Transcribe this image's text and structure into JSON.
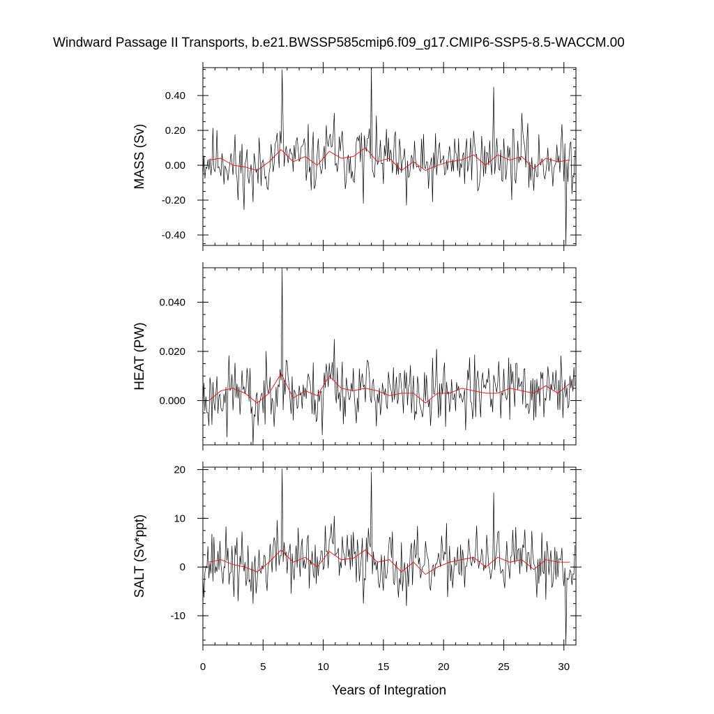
{
  "title": "Windward Passage II Transports, b.e21.BWSSP585cmip6.f09_g17.CMIP6-SSP5-8.5-WACCM.00",
  "chart_data": [
    {
      "type": "line",
      "ylabel": "MASS (Sv)",
      "xlim": [
        0,
        31
      ],
      "ylim": [
        -0.46,
        0.56
      ],
      "yticks": [
        -0.4,
        -0.2,
        0.0,
        0.2,
        0.4
      ],
      "ytick_labels": [
        "-0.40",
        "-0.20",
        "0.00",
        "0.20",
        "0.40"
      ],
      "raw_color": "#000000",
      "annual_color": "#ff0000",
      "seed": 11,
      "raw_amplitude": 0.09,
      "spikes": [
        [
          6.6,
          0.55
        ],
        [
          14.0,
          0.56
        ],
        [
          24.2,
          0.45
        ],
        [
          10.9,
          0.3
        ],
        [
          26.5,
          0.3
        ],
        [
          30.2,
          -0.46
        ],
        [
          13.3,
          -0.22
        ],
        [
          16.9,
          -0.23
        ],
        [
          2.9,
          -0.2
        ],
        [
          4.2,
          -0.21
        ]
      ],
      "annual_x": [
        0.5,
        1.5,
        2.5,
        3.5,
        4.5,
        5.5,
        6.5,
        7.5,
        8.5,
        9.5,
        10.5,
        11.5,
        12.5,
        13.5,
        14.5,
        15.5,
        16.5,
        17.5,
        18.5,
        19.5,
        20.5,
        21.5,
        22.5,
        23.5,
        24.5,
        25.5,
        26.5,
        27.5,
        28.5,
        29.5,
        30.5
      ],
      "annual_values": [
        0.03,
        0.04,
        0.0,
        -0.01,
        -0.03,
        0.02,
        0.09,
        0.02,
        0.05,
        0.0,
        0.08,
        0.04,
        0.05,
        0.1,
        0.02,
        0.04,
        -0.03,
        0.02,
        -0.03,
        0.0,
        0.02,
        0.03,
        0.06,
        0.0,
        0.06,
        0.03,
        0.05,
        -0.02,
        0.04,
        0.02,
        0.03
      ]
    },
    {
      "type": "line",
      "ylabel": "HEAT (PW)",
      "xlim": [
        0,
        31
      ],
      "ylim": [
        -0.018,
        0.054
      ],
      "yticks": [
        0.0,
        0.02,
        0.04
      ],
      "ytick_labels": [
        "0.000",
        "0.020",
        "0.040"
      ],
      "raw_color": "#000000",
      "annual_color": "#ff0000",
      "seed": 23,
      "raw_amplitude": 0.0065,
      "spikes": [
        [
          6.6,
          0.054
        ],
        [
          10.9,
          0.025
        ],
        [
          19.4,
          0.021
        ],
        [
          4.2,
          -0.018
        ],
        [
          2.0,
          -0.015
        ],
        [
          9.9,
          -0.014
        ],
        [
          21.8,
          -0.012
        ]
      ],
      "annual_x": [
        0.5,
        1.5,
        2.5,
        3.5,
        4.5,
        5.5,
        6.5,
        7.5,
        8.5,
        9.5,
        10.5,
        11.5,
        12.5,
        13.5,
        14.5,
        15.5,
        16.5,
        17.5,
        18.5,
        19.5,
        20.5,
        21.5,
        22.5,
        23.5,
        24.5,
        25.5,
        26.5,
        27.5,
        28.5,
        29.5,
        30.5
      ],
      "annual_values": [
        0.0,
        0.004,
        0.005,
        0.003,
        -0.001,
        0.003,
        0.011,
        0.001,
        0.004,
        0.002,
        0.01,
        0.005,
        0.004,
        0.005,
        0.004,
        0.002,
        0.003,
        0.003,
        -0.001,
        0.003,
        0.003,
        0.005,
        0.004,
        0.003,
        0.003,
        0.005,
        0.004,
        0.003,
        0.006,
        0.003,
        0.007
      ]
    },
    {
      "type": "line",
      "ylabel": "SALT (Sv*ppt)",
      "xlabel": "Years of Integration",
      "xlim": [
        0,
        31
      ],
      "ylim": [
        -16,
        20.5
      ],
      "yticks": [
        -10,
        0,
        10,
        20
      ],
      "ytick_labels": [
        "-10",
        "0",
        "10",
        "20"
      ],
      "xticks": [
        0,
        5,
        10,
        15,
        20,
        25,
        30
      ],
      "xtick_labels": [
        "0",
        "5",
        "10",
        "15",
        "20",
        "25",
        "30"
      ],
      "raw_color": "#000000",
      "annual_color": "#ff0000",
      "seed": 37,
      "raw_amplitude": 3.2,
      "spikes": [
        [
          6.6,
          20.2
        ],
        [
          14.0,
          19.5
        ],
        [
          24.2,
          15.3
        ],
        [
          10.9,
          10.5
        ],
        [
          30.2,
          -16
        ],
        [
          13.3,
          -7.5
        ],
        [
          16.9,
          -8.0
        ],
        [
          2.9,
          -7.0
        ],
        [
          4.2,
          -7.5
        ]
      ],
      "annual_x": [
        0.5,
        1.5,
        2.5,
        3.5,
        4.5,
        5.5,
        6.5,
        7.5,
        8.5,
        9.5,
        10.5,
        11.5,
        12.5,
        13.5,
        14.5,
        15.5,
        16.5,
        17.5,
        18.5,
        19.5,
        20.5,
        21.5,
        22.5,
        23.5,
        24.5,
        25.5,
        26.5,
        27.5,
        28.5,
        29.5,
        30.5
      ],
      "annual_values": [
        1.0,
        1.5,
        0.5,
        0.0,
        -1.0,
        1.0,
        3.5,
        1.0,
        2.0,
        0.0,
        3.2,
        1.5,
        1.8,
        3.5,
        1.0,
        1.5,
        -1.0,
        1.0,
        -1.5,
        0.0,
        1.0,
        1.5,
        2.0,
        0.0,
        2.0,
        1.0,
        1.5,
        -0.5,
        1.5,
        1.0,
        1.0
      ]
    }
  ]
}
